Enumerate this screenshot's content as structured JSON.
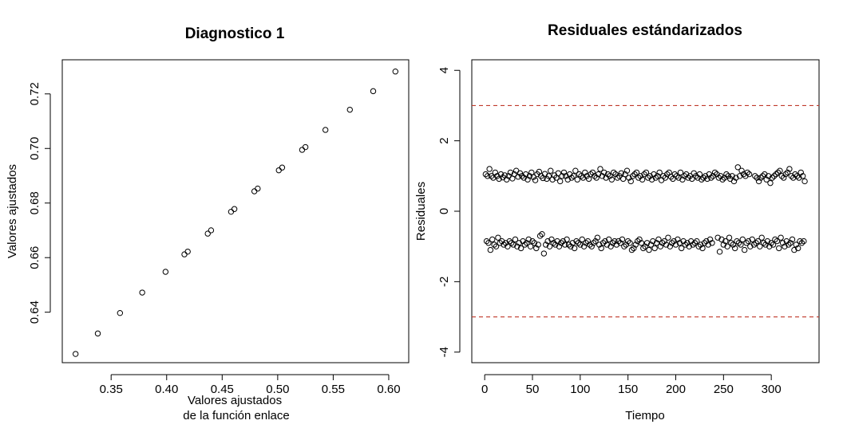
{
  "chart_data": [
    {
      "type": "scatter",
      "title": "Diagnostico 1",
      "xlabel": "Valores ajustados",
      "xlabel2": "de la función enlace",
      "ylabel": "Valores ajustados",
      "xlim": [
        0.306,
        0.618
      ],
      "ylim": [
        0.6215,
        0.7325
      ],
      "xticks": [
        0.35,
        0.4,
        0.45,
        0.5,
        0.55,
        0.6
      ],
      "xtick_labels": [
        "0.35",
        "0.40",
        "0.45",
        "0.50",
        "0.55",
        "0.60"
      ],
      "yticks": [
        0.64,
        0.66,
        0.68,
        0.7,
        0.72
      ],
      "ytick_labels": [
        "0.64",
        "0.66",
        "0.68",
        "0.70",
        "0.72"
      ],
      "x": [
        0.318,
        0.338,
        0.358,
        0.378,
        0.399,
        0.416,
        0.419,
        0.437,
        0.44,
        0.458,
        0.461,
        0.479,
        0.482,
        0.501,
        0.504,
        0.522,
        0.525,
        0.543,
        0.565,
        0.586,
        0.606
      ],
      "y": [
        0.6247,
        0.6322,
        0.6397,
        0.6472,
        0.6548,
        0.6612,
        0.6622,
        0.6688,
        0.67,
        0.6768,
        0.6778,
        0.6843,
        0.6853,
        0.692,
        0.693,
        0.6995,
        0.7005,
        0.7068,
        0.7142,
        0.721,
        0.7282
      ],
      "grid": false
    },
    {
      "type": "scatter",
      "title": "Residuales estándarizados",
      "xlabel": "Tiempo",
      "ylabel": "Residuales",
      "xlim": [
        -13.5,
        350
      ],
      "ylim": [
        -4.3,
        4.3
      ],
      "xticks": [
        0,
        50,
        100,
        150,
        200,
        250,
        300
      ],
      "xtick_labels": [
        "0",
        "50",
        "100",
        "150",
        "200",
        "250",
        "300"
      ],
      "yticks": [
        -4,
        -2,
        0,
        2,
        4
      ],
      "ytick_labels": [
        "-4",
        "-2",
        "0",
        "2",
        "4"
      ],
      "reference_lines": [
        {
          "y": 3,
          "color": "#c0392b",
          "style": "dashed"
        },
        {
          "y": -3,
          "color": "#c0392b",
          "style": "dashed"
        }
      ],
      "series": [
        {
          "x": [
            1,
            3,
            5,
            7,
            9,
            11,
            13,
            15,
            17,
            19,
            21,
            23,
            25,
            27,
            29,
            31,
            33,
            35,
            37,
            39,
            41,
            43,
            45,
            47,
            49,
            51,
            53,
            55,
            57,
            59,
            61,
            63,
            65,
            67,
            69,
            71,
            73,
            75,
            77,
            79,
            81,
            83,
            85,
            87,
            89,
            91,
            93,
            95,
            97,
            99,
            101,
            103,
            105,
            107,
            109,
            111,
            113,
            115,
            117,
            119,
            121,
            123,
            125,
            127,
            129,
            131,
            133,
            135,
            137,
            139,
            141,
            143,
            145,
            147,
            149,
            151,
            153,
            155,
            157,
            159,
            161,
            163,
            165,
            167,
            169,
            171,
            173,
            175,
            177,
            179,
            181,
            183,
            185,
            187,
            189,
            191,
            193,
            195,
            197,
            199,
            201,
            203,
            205,
            207,
            209,
            211,
            213,
            215,
            217,
            219,
            221,
            223,
            225,
            227,
            229,
            231,
            233,
            235,
            237,
            239,
            241,
            243,
            245,
            247,
            249,
            251,
            253,
            255,
            257,
            259,
            261,
            263,
            265,
            267,
            269,
            271,
            273,
            275,
            277,
            283,
            285,
            287,
            289,
            291,
            293,
            295,
            297,
            299,
            301,
            303,
            305,
            307,
            309,
            311,
            313,
            315,
            317,
            319,
            321,
            323,
            325,
            327,
            329,
            331,
            333,
            335
          ],
          "y": [
            1.05,
            1.0,
            1.2,
            1.0,
            0.95,
            1.1,
            1.0,
            0.92,
            1.05,
            0.96,
            1.02,
            0.9,
            1.0,
            1.1,
            0.93,
            1.05,
            1.15,
            0.98,
            1.08,
            1.0,
            0.95,
            1.05,
            0.9,
            1.0,
            1.1,
            0.97,
            0.88,
            1.05,
            1.12,
            1.0,
            0.94,
            1.06,
            0.92,
            1.0,
            1.15,
            0.9,
            1.02,
            0.95,
            1.08,
            0.85,
            1.0,
            1.1,
            1.0,
            0.9,
            1.05,
            0.95,
            1.0,
            1.15,
            0.9,
            1.05,
            1.0,
            0.95,
            1.1,
            1.0,
            0.92,
            1.05,
            1.1,
            1.0,
            0.95,
            1.05,
            1.2,
            1.0,
            1.1,
            0.95,
            1.05,
            1.0,
            0.9,
            1.1,
            1.05,
            0.95,
            1.0,
            1.08,
            0.92,
            1.05,
            1.15,
            0.95,
            0.85,
            1.0,
            1.05,
            1.1,
            0.95,
            1.0,
            0.9,
            1.05,
            1.1,
            0.95,
            1.0,
            0.9,
            1.05,
            0.95,
            1.0,
            1.1,
            0.88,
            1.0,
            0.95,
            1.05,
            1.1,
            0.98,
            0.92,
            1.05,
            1.0,
            0.95,
            1.1,
            0.9,
            1.0,
            1.05,
            0.95,
            1.0,
            0.92,
            1.08,
            1.0,
            0.95,
            1.05,
            0.9,
            0.95,
            1.0,
            0.92,
            1.05,
            0.95,
            1.0,
            1.1,
            1.05,
            0.95,
            1.0,
            0.9,
            0.95,
            1.05,
            1.0,
            0.92,
            1.0,
            0.85,
            0.95,
            1.25,
            1.0,
            1.15,
            1.05,
            1.0,
            1.1,
            1.05,
            1.0,
            0.95,
            0.85,
            0.95,
            1.0,
            1.05,
            0.9,
            1.0,
            0.8,
            0.95,
            1.0,
            1.05,
            1.1,
            1.15,
            1.0,
            0.95,
            1.05,
            1.1,
            1.2,
            1.0,
            0.95,
            1.05,
            1.0,
            0.95,
            1.1,
            1.0,
            0.85
          ]
        },
        {
          "x": [
            2,
            4,
            6,
            8,
            10,
            12,
            14,
            16,
            18,
            20,
            22,
            24,
            26,
            28,
            30,
            32,
            34,
            36,
            38,
            40,
            42,
            44,
            46,
            48,
            50,
            52,
            54,
            56,
            58,
            60,
            62,
            64,
            66,
            68,
            70,
            72,
            74,
            76,
            78,
            80,
            82,
            84,
            86,
            88,
            90,
            92,
            94,
            96,
            98,
            100,
            102,
            104,
            106,
            108,
            110,
            112,
            114,
            116,
            118,
            120,
            122,
            124,
            126,
            128,
            130,
            132,
            134,
            136,
            138,
            140,
            142,
            144,
            146,
            148,
            150,
            152,
            154,
            156,
            158,
            160,
            162,
            164,
            166,
            168,
            170,
            172,
            174,
            176,
            178,
            180,
            182,
            184,
            186,
            188,
            190,
            192,
            194,
            196,
            198,
            200,
            202,
            204,
            206,
            208,
            210,
            212,
            214,
            216,
            218,
            220,
            222,
            224,
            226,
            228,
            230,
            232,
            234,
            236,
            238,
            244,
            246,
            248,
            250,
            252,
            254,
            256,
            258,
            260,
            262,
            264,
            266,
            268,
            270,
            272,
            274,
            276,
            278,
            280,
            282,
            284,
            286,
            288,
            290,
            292,
            294,
            296,
            298,
            300,
            302,
            304,
            306,
            308,
            310,
            312,
            314,
            316,
            318,
            320,
            322,
            324,
            326,
            328,
            330,
            332,
            334
          ],
          "y": [
            -0.85,
            -0.9,
            -1.1,
            -0.8,
            -0.95,
            -1.0,
            -0.75,
            -0.9,
            -0.85,
            -0.95,
            -0.9,
            -1.0,
            -0.85,
            -0.9,
            -0.95,
            -0.8,
            -1.0,
            -0.9,
            -1.05,
            -0.85,
            -0.95,
            -0.9,
            -0.8,
            -1.0,
            -0.85,
            -0.9,
            -1.05,
            -0.95,
            -0.7,
            -0.65,
            -1.2,
            -0.95,
            -0.85,
            -1.0,
            -0.8,
            -0.9,
            -0.95,
            -0.85,
            -1.0,
            -0.9,
            -0.85,
            -0.95,
            -0.8,
            -0.95,
            -1.0,
            -0.9,
            -1.05,
            -0.85,
            -0.9,
            -0.95,
            -0.8,
            -1.0,
            -0.9,
            -0.85,
            -0.95,
            -1.0,
            -0.9,
            -0.85,
            -0.75,
            -0.95,
            -1.05,
            -0.9,
            -0.85,
            -0.95,
            -0.8,
            -1.0,
            -0.9,
            -0.85,
            -0.95,
            -0.85,
            -0.9,
            -0.8,
            -1.0,
            -0.95,
            -0.85,
            -0.9,
            -1.1,
            -1.05,
            -0.95,
            -0.85,
            -0.8,
            -0.9,
            -1.05,
            -1.0,
            -0.9,
            -1.1,
            -0.95,
            -0.85,
            -1.05,
            -0.9,
            -0.8,
            -1.0,
            -0.9,
            -0.85,
            -0.95,
            -0.75,
            -1.0,
            -0.9,
            -0.85,
            -0.95,
            -0.8,
            -0.9,
            -1.05,
            -0.85,
            -0.95,
            -0.9,
            -1.0,
            -0.85,
            -0.95,
            -0.9,
            -0.85,
            -1.0,
            -0.95,
            -1.05,
            -0.9,
            -0.85,
            -0.95,
            -0.8,
            -0.9,
            -0.75,
            -1.15,
            -0.8,
            -0.95,
            -0.85,
            -1.0,
            -0.75,
            -0.9,
            -0.95,
            -1.05,
            -0.85,
            -0.9,
            -0.95,
            -0.8,
            -1.1,
            -0.9,
            -0.85,
            -1.0,
            -0.8,
            -0.95,
            -0.9,
            -0.85,
            -1.0,
            -0.75,
            -0.9,
            -0.95,
            -0.85,
            -1.0,
            -0.9,
            -0.95,
            -0.8,
            -0.85,
            -1.05,
            -0.75,
            -0.9,
            -1.0,
            -0.85,
            -0.95,
            -0.9,
            -0.8,
            -1.1,
            -0.95,
            -1.05,
            -0.85,
            -0.9,
            -0.85
          ]
        }
      ],
      "grid": false
    }
  ]
}
